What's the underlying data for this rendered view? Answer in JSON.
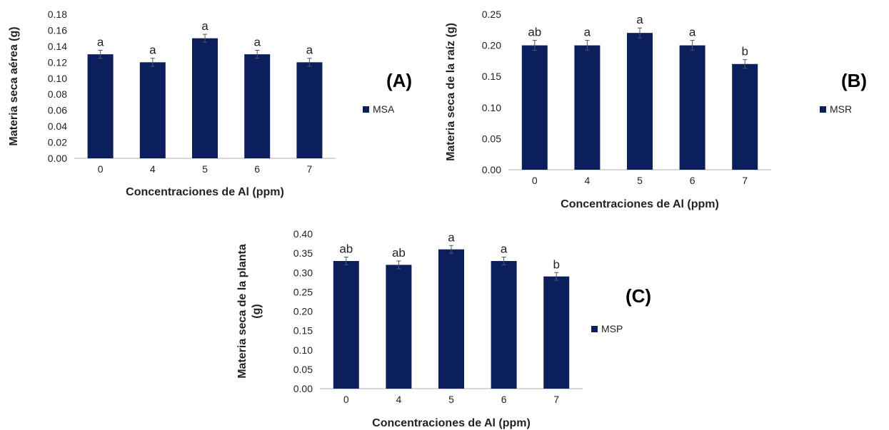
{
  "colors": {
    "bar": "#0b1f5c",
    "axis": "#bfbfbf",
    "errorbar": "#555555"
  },
  "chart_data": [
    {
      "type": "bar",
      "panel_label": "(A)",
      "categories": [
        "0",
        "4",
        "5",
        "6",
        "7"
      ],
      "series": [
        {
          "name": "MSA",
          "values": [
            0.13,
            0.12,
            0.15,
            0.13,
            0.12
          ]
        }
      ],
      "errors": [
        0.005,
        0.005,
        0.005,
        0.005,
        0.005
      ],
      "significance": [
        "a",
        "a",
        "a",
        "a",
        "a"
      ],
      "xlabel": "Concentraciones de Al (ppm)",
      "ylabel": "Materia seca aérea (g)",
      "ylim": [
        0,
        0.18
      ],
      "yticks": [
        "0.00",
        "0.02",
        "0.04",
        "0.06",
        "0.08",
        "0.10",
        "0.12",
        "0.14",
        "0.16",
        "0.18"
      ],
      "grid": false,
      "legend": "right"
    },
    {
      "type": "bar",
      "panel_label": "(B)",
      "categories": [
        "0",
        "4",
        "5",
        "6",
        "7"
      ],
      "series": [
        {
          "name": "MSR",
          "values": [
            0.2,
            0.2,
            0.22,
            0.2,
            0.17
          ]
        }
      ],
      "errors": [
        0.008,
        0.008,
        0.008,
        0.008,
        0.007
      ],
      "significance": [
        "ab",
        "a",
        "a",
        "a",
        "b"
      ],
      "xlabel": "Concentraciones de Al (ppm)",
      "ylabel": "Materia seca de la raíz (g)",
      "ylim": [
        0,
        0.25
      ],
      "yticks": [
        "0.00",
        "0.05",
        "0.10",
        "0.15",
        "0.20",
        "0.25"
      ],
      "grid": false,
      "legend": "right"
    },
    {
      "type": "bar",
      "panel_label": "(C)",
      "categories": [
        "0",
        "4",
        "5",
        "6",
        "7"
      ],
      "series": [
        {
          "name": "MSP",
          "values": [
            0.33,
            0.32,
            0.36,
            0.33,
            0.29
          ]
        }
      ],
      "errors": [
        0.01,
        0.01,
        0.01,
        0.01,
        0.01
      ],
      "significance": [
        "ab",
        "ab",
        "a",
        "a",
        "b"
      ],
      "xlabel": "Concentraciones de Al (ppm)",
      "ylabel": "Materia seca de la planta (g)",
      "ylim": [
        0,
        0.4
      ],
      "yticks": [
        "0.00",
        "0.05",
        "0.10",
        "0.15",
        "0.20",
        "0.25",
        "0.30",
        "0.35",
        "0.40"
      ],
      "grid": false,
      "legend": "right"
    }
  ]
}
